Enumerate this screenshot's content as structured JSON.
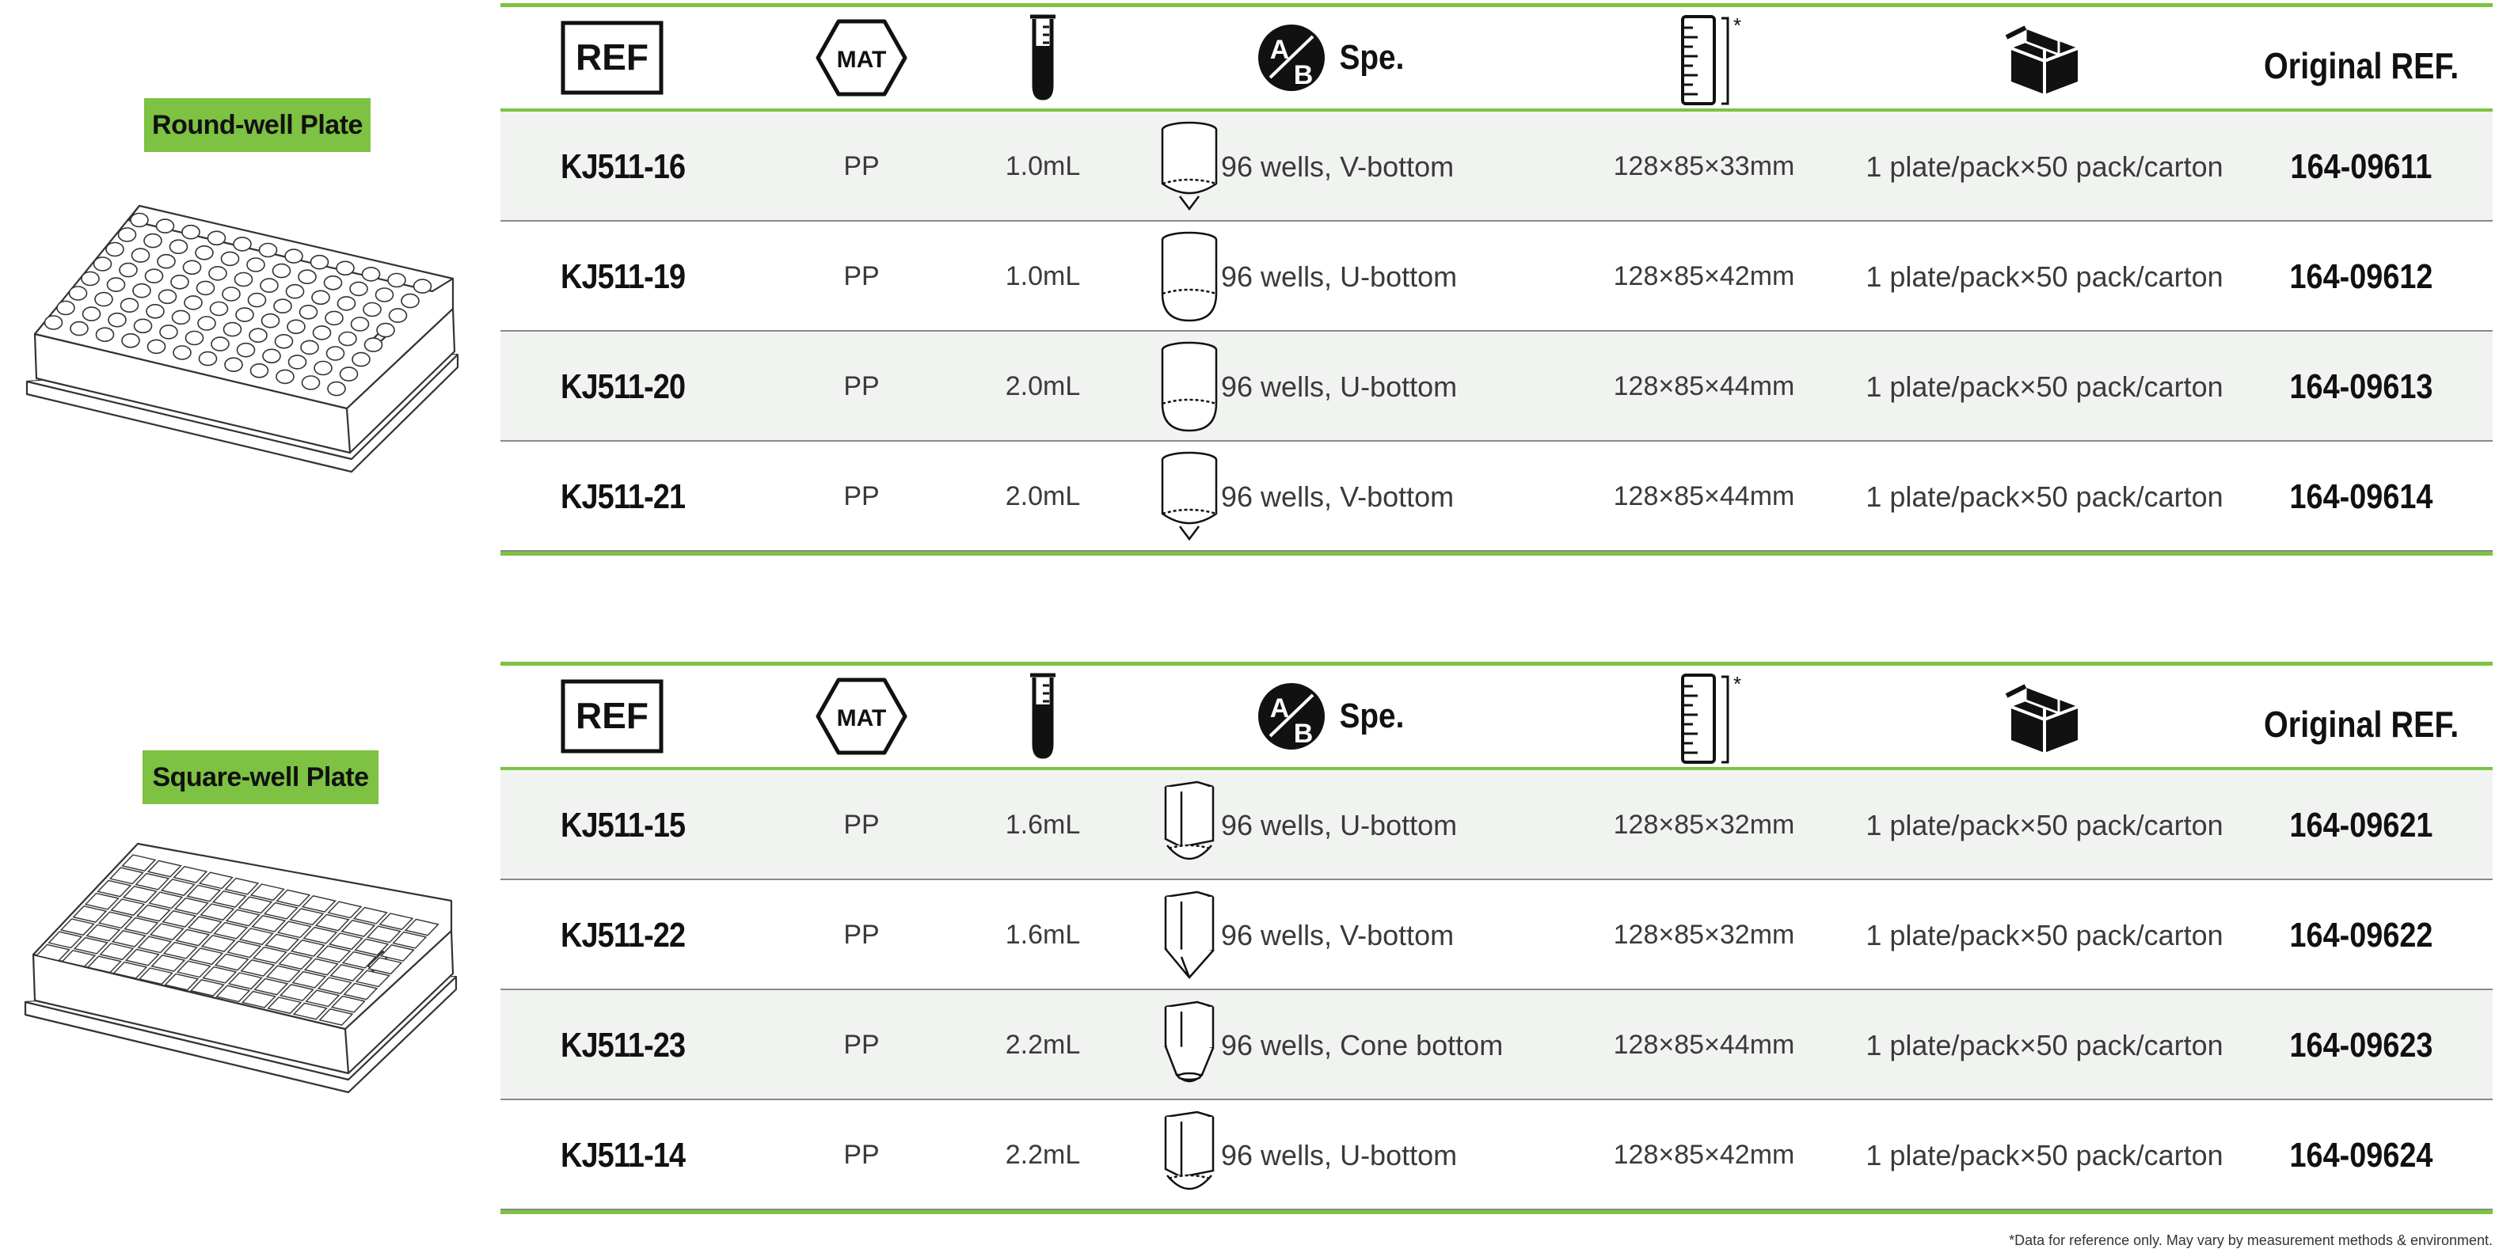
{
  "headers": {
    "ref": "REF",
    "mat": "MAT",
    "spe": "Spe.",
    "spe_icon_letters": "AB",
    "dim_note": "*",
    "original_ref": "Original REF."
  },
  "section_round": {
    "label": "Round-well Plate",
    "rows": [
      {
        "ref": "KJ511-16",
        "mat": "PP",
        "volume": "1.0mL",
        "spe": "96 wells, V-bottom",
        "dimensions": "128×85×33mm",
        "packing": "1 plate/pack×50 pack/carton",
        "original": "164-09611",
        "well_icon": "round-v-bottom-well-icon"
      },
      {
        "ref": "KJ511-19",
        "mat": "PP",
        "volume": "1.0mL",
        "spe": "96 wells, U-bottom",
        "dimensions": "128×85×42mm",
        "packing": "1 plate/pack×50 pack/carton",
        "original": "164-09612",
        "well_icon": "round-u-bottom-well-icon"
      },
      {
        "ref": "KJ511-20",
        "mat": "PP",
        "volume": "2.0mL",
        "spe": "96 wells, U-bottom",
        "dimensions": "128×85×44mm",
        "packing": "1 plate/pack×50 pack/carton",
        "original": "164-09613",
        "well_icon": "round-u-bottom-well-icon"
      },
      {
        "ref": "KJ511-21",
        "mat": "PP",
        "volume": "2.0mL",
        "spe": "96 wells, V-bottom",
        "dimensions": "128×85×44mm",
        "packing": "1 plate/pack×50 pack/carton",
        "original": "164-09614",
        "well_icon": "round-v-bottom-well-icon"
      }
    ]
  },
  "section_square": {
    "label": "Square-well Plate",
    "rows": [
      {
        "ref": "KJ511-15",
        "mat": "PP",
        "volume": "1.6mL",
        "spe": "96 wells, U-bottom",
        "dimensions": "128×85×32mm",
        "packing": "1 plate/pack×50 pack/carton",
        "original": "164-09621",
        "well_icon": "square-u-bottom-well-icon"
      },
      {
        "ref": "KJ511-22",
        "mat": "PP",
        "volume": "1.6mL",
        "spe": "96 wells, V-bottom",
        "dimensions": "128×85×32mm",
        "packing": "1 plate/pack×50 pack/carton",
        "original": "164-09622",
        "well_icon": "square-v-bottom-well-icon"
      },
      {
        "ref": "KJ511-23",
        "mat": "PP",
        "volume": "2.2mL",
        "spe": "96 wells, Cone bottom",
        "dimensions": "128×85×44mm",
        "packing": "1 plate/pack×50 pack/carton",
        "original": "164-09623",
        "well_icon": "square-cone-bottom-well-icon"
      },
      {
        "ref": "KJ511-14",
        "mat": "PP",
        "volume": "2.2mL",
        "spe": "96 wells, U-bottom",
        "dimensions": "128×85×42mm",
        "packing": "1 plate/pack×50 pack/carton",
        "original": "164-09624",
        "well_icon": "square-u-bottom-well-icon"
      }
    ]
  },
  "footnote": "*Data for reference only. May vary by measurement methods & environment.",
  "colors": {
    "accent_green": "#7dc243",
    "row_shade": "#f1f3f1",
    "text": "#231f20"
  }
}
